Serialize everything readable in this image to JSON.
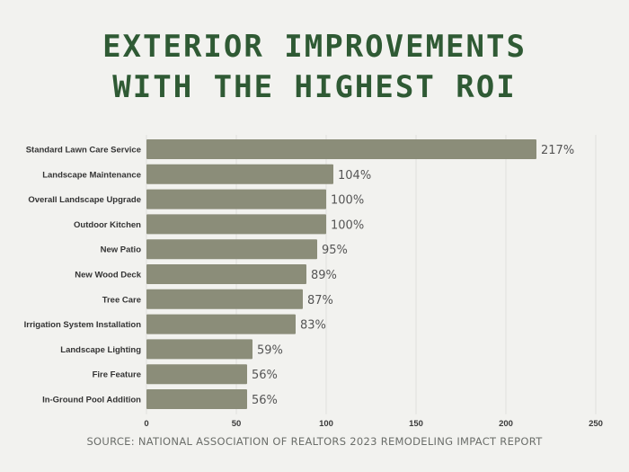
{
  "chart_data": {
    "type": "bar",
    "orientation": "horizontal",
    "title_lines": [
      "EXTERIOR IMPROVEMENTS",
      "WITH THE HIGHEST ROI"
    ],
    "categories": [
      "Standard Lawn Care Service",
      "Landscape Maintenance",
      "Overall Landscape Upgrade",
      "Outdoor Kitchen",
      "New Patio",
      "New Wood Deck",
      "Tree Care",
      "Irrigation System Installation",
      "Landscape Lighting",
      "Fire Feature",
      "In-Ground Pool Addition"
    ],
    "values": [
      217,
      104,
      100,
      100,
      95,
      89,
      87,
      83,
      59,
      56,
      56
    ],
    "data_labels": [
      "217%",
      "104%",
      "100%",
      "100%",
      "95%",
      "89%",
      "87%",
      "83%",
      "59%",
      "56%",
      "56%"
    ],
    "xticks": [
      0,
      50,
      100,
      150,
      200,
      250
    ],
    "xlim": [
      0,
      250
    ],
    "grid": true,
    "source": "SOURCE: NATIONAL ASSOCIATION OF REALTORS 2023 REMODELING IMPACT REPORT",
    "colors": {
      "bar": "#8b8d79",
      "title": "#2f5a34",
      "background": "#f2f2ef"
    }
  }
}
